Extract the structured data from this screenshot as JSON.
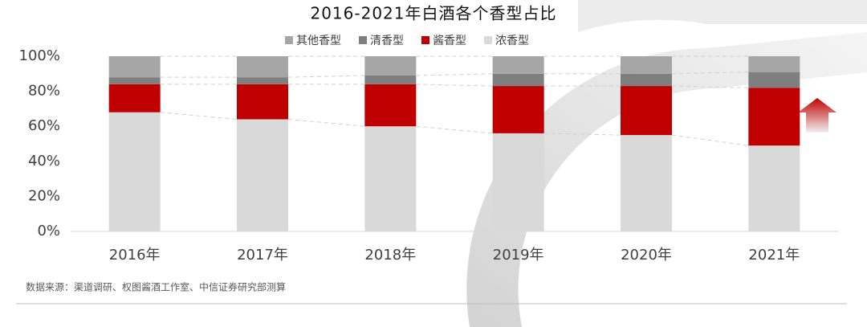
{
  "chart_data": {
    "type": "stacked_bar",
    "title": "2016-2021年白酒各个香型占比",
    "categories": [
      "2016年",
      "2017年",
      "2018年",
      "2019年",
      "2020年",
      "2021年"
    ],
    "series": [
      {
        "name": "浓香型",
        "color": "#d9d9d9",
        "values": [
          68,
          64,
          60,
          56,
          55,
          49
        ]
      },
      {
        "name": "酱香型",
        "color": "#c00000",
        "values": [
          16,
          20,
          24,
          27,
          28,
          33
        ]
      },
      {
        "name": "清香型",
        "color": "#7f7f7f",
        "values": [
          4,
          4,
          5,
          7,
          7,
          9
        ]
      },
      {
        "name": "其他香型",
        "color": "#a6a6a6",
        "values": [
          12,
          12,
          11,
          10,
          10,
          9
        ]
      }
    ],
    "ylim": [
      0,
      100
    ],
    "yticks": [
      {
        "value": 0,
        "label": "0%"
      },
      {
        "value": 20,
        "label": "20%"
      },
      {
        "value": 40,
        "label": "40%"
      },
      {
        "value": 60,
        "label": "60%"
      },
      {
        "value": 80,
        "label": "80%"
      },
      {
        "value": 100,
        "label": "100%"
      }
    ],
    "source": "数据来源：渠道调研、权图酱酒工作室、中信证券研究部测算"
  }
}
